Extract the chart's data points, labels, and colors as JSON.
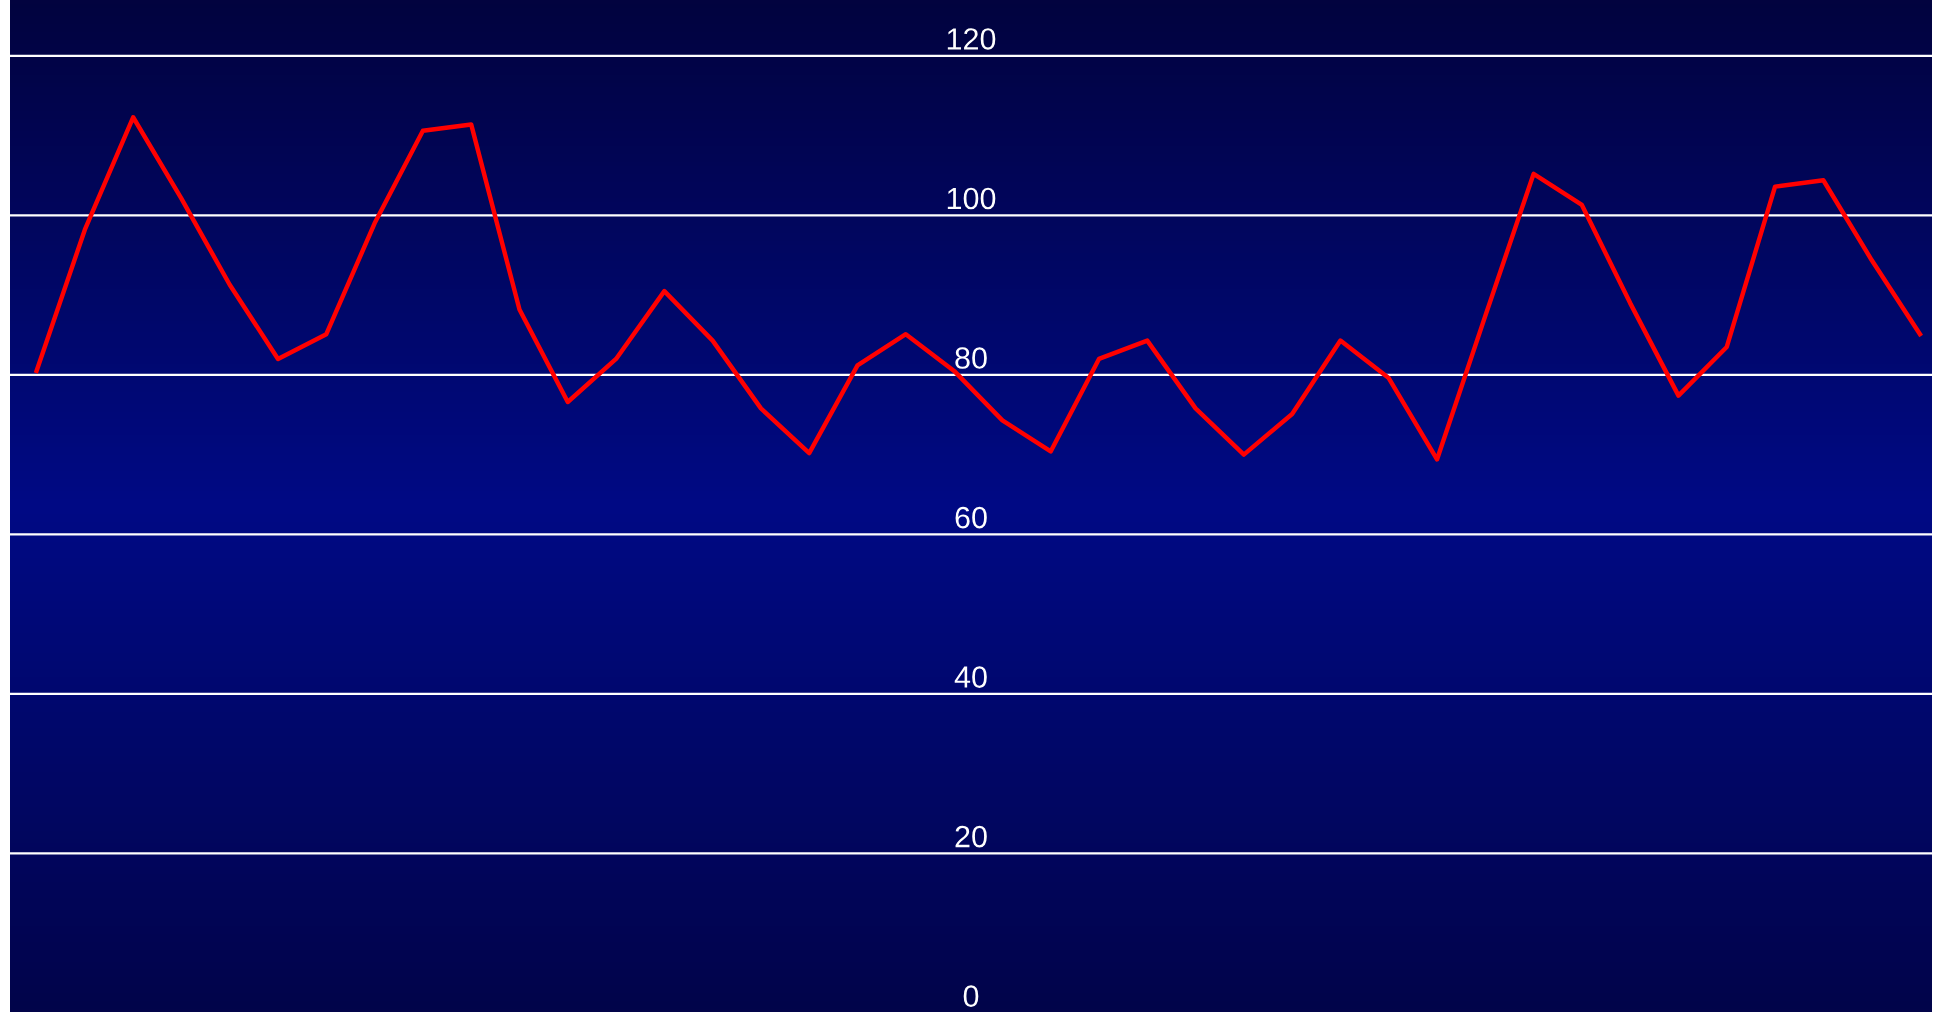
{
  "chart_data": {
    "type": "line",
    "categories": [
      null,
      null,
      null,
      null,
      null,
      null,
      null,
      null,
      null,
      null,
      null,
      null,
      null,
      null,
      null,
      null,
      null,
      null,
      null,
      null,
      null,
      null,
      null,
      null,
      null,
      null,
      null,
      null,
      null,
      null,
      null,
      null,
      null,
      null,
      null,
      null,
      null,
      null,
      null,
      null
    ],
    "series": [
      {
        "color": "#ff0000",
        "values": [
          80.5,
          98.2,
          112.3,
          102.1,
          91.3,
          82,
          85.1,
          99,
          110.6,
          111.4,
          88.2,
          76.6,
          82,
          90.5,
          84.3,
          75.8,
          70.2,
          81.2,
          85.1,
          80.5,
          74.3,
          70.4,
          82,
          84.3,
          75.8,
          70,
          75.1,
          84.3,
          79.6,
          69.4,
          87.4,
          105.2,
          101.3,
          89,
          77.4,
          83.5,
          103.6,
          104.4,
          94.4,
          85.1
        ]
      }
    ],
    "ylim": [
      0,
      127
    ],
    "yticks": [
      0,
      20,
      40,
      60,
      80,
      100,
      120
    ],
    "grid": "y",
    "marker": "none",
    "line_style": "solid",
    "legend": false,
    "tick_labels": "y"
  }
}
